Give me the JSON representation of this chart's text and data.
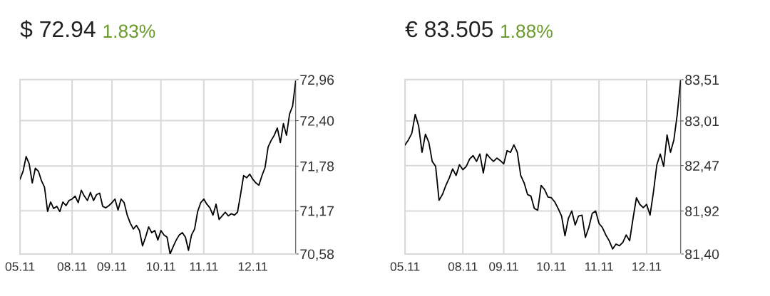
{
  "chart_data": [
    {
      "type": "line",
      "title": "$ 72.94",
      "subtitle": "1.83%",
      "grid": true,
      "ylim": [
        70.58,
        72.96
      ],
      "categories": [
        "05.11",
        null,
        null,
        null,
        null,
        null,
        null,
        null,
        null,
        null,
        null,
        null,
        null,
        null,
        null,
        null,
        null,
        "08.11",
        null,
        null,
        null,
        null,
        null,
        null,
        null,
        null,
        null,
        null,
        null,
        null,
        "09.11",
        null,
        null,
        null,
        null,
        null,
        null,
        null,
        null,
        null,
        null,
        null,
        null,
        null,
        null,
        null,
        "10.11",
        null,
        null,
        null,
        null,
        null,
        null,
        null,
        null,
        null,
        null,
        null,
        null,
        null,
        "11.11",
        null,
        null,
        null,
        null,
        null,
        null,
        null,
        null,
        null,
        null,
        null,
        null,
        null,
        null,
        null,
        "12.11",
        null,
        null,
        null,
        null,
        null,
        null,
        null,
        null,
        null,
        null,
        null,
        null,
        null,
        null
      ],
      "yticks": [
        {
          "value": 70.58,
          "label": "70,58"
        },
        {
          "value": 71.17,
          "label": "71,17"
        },
        {
          "value": 71.78,
          "label": "71,78"
        },
        {
          "value": 72.4,
          "label": "72,40"
        },
        {
          "value": 72.96,
          "label": "72,96"
        }
      ],
      "series": [
        {
          "color": "#000000",
          "values": [
            71.6,
            71.71,
            71.91,
            71.81,
            71.55,
            71.75,
            71.71,
            71.58,
            71.49,
            71.16,
            71.29,
            71.2,
            71.23,
            71.16,
            71.29,
            71.24,
            71.31,
            71.33,
            71.37,
            71.28,
            71.45,
            71.37,
            71.31,
            71.42,
            71.31,
            71.39,
            71.41,
            71.23,
            71.21,
            71.24,
            71.28,
            71.33,
            71.18,
            71.33,
            71.28,
            71.11,
            71.0,
            70.92,
            70.97,
            70.9,
            70.69,
            70.81,
            70.95,
            70.87,
            70.9,
            70.77,
            70.9,
            70.84,
            70.81,
            70.58,
            70.68,
            70.77,
            70.84,
            70.87,
            70.81,
            70.63,
            70.84,
            70.92,
            71.16,
            71.28,
            71.33,
            71.26,
            71.21,
            71.11,
            71.26,
            71.05,
            71.1,
            71.15,
            71.1,
            71.13,
            71.11,
            71.15,
            71.39,
            71.65,
            71.62,
            71.67,
            71.6,
            71.55,
            71.52,
            71.65,
            71.76,
            72.04,
            72.13,
            72.2,
            72.3,
            72.1,
            72.36,
            72.2,
            72.49,
            72.6,
            72.94
          ]
        }
      ]
    },
    {
      "type": "line",
      "title": "€ 83.505",
      "subtitle": "1.88%",
      "grid": true,
      "ylim": [
        81.4,
        83.51
      ],
      "categories": [
        "05.11",
        null,
        null,
        null,
        null,
        null,
        null,
        null,
        null,
        null,
        null,
        null,
        null,
        null,
        null,
        null,
        null,
        "08.11",
        null,
        null,
        null,
        null,
        null,
        null,
        null,
        null,
        null,
        null,
        null,
        "09.11",
        null,
        null,
        null,
        null,
        null,
        null,
        null,
        null,
        null,
        null,
        null,
        null,
        null,
        "10.11",
        null,
        null,
        null,
        null,
        null,
        null,
        null,
        null,
        null,
        null,
        null,
        null,
        null,
        "11.11",
        null,
        null,
        null,
        null,
        null,
        null,
        null,
        null,
        null,
        null,
        null,
        null,
        null,
        "12.11",
        null,
        null,
        null,
        null,
        null,
        null,
        null,
        null,
        null,
        null
      ],
      "yticks": [
        {
          "value": 81.4,
          "label": "81,40"
        },
        {
          "value": 81.92,
          "label": "81,92"
        },
        {
          "value": 82.47,
          "label": "82,47"
        },
        {
          "value": 83.01,
          "label": "83,01"
        },
        {
          "value": 83.51,
          "label": "83,51"
        }
      ],
      "series": [
        {
          "color": "#000000",
          "values": [
            82.72,
            82.78,
            82.86,
            83.09,
            82.95,
            82.63,
            82.85,
            82.75,
            82.52,
            82.46,
            82.05,
            82.12,
            82.23,
            82.32,
            82.43,
            82.35,
            82.48,
            82.42,
            82.46,
            82.55,
            82.59,
            82.52,
            82.61,
            82.38,
            82.61,
            82.56,
            82.52,
            82.56,
            82.53,
            82.49,
            82.65,
            82.63,
            82.72,
            82.63,
            82.35,
            82.26,
            82.12,
            82.1,
            81.95,
            81.93,
            82.23,
            82.18,
            82.09,
            82.08,
            82.03,
            81.95,
            81.86,
            81.62,
            81.83,
            81.92,
            81.75,
            81.86,
            81.87,
            81.6,
            81.72,
            81.89,
            81.92,
            81.77,
            81.72,
            81.63,
            81.56,
            81.46,
            81.52,
            81.5,
            81.54,
            81.63,
            81.56,
            81.83,
            82.08,
            82.0,
            81.96,
            82.0,
            81.87,
            82.15,
            82.48,
            82.61,
            82.46,
            82.84,
            82.63,
            82.78,
            83.09,
            83.51
          ]
        }
      ]
    }
  ]
}
